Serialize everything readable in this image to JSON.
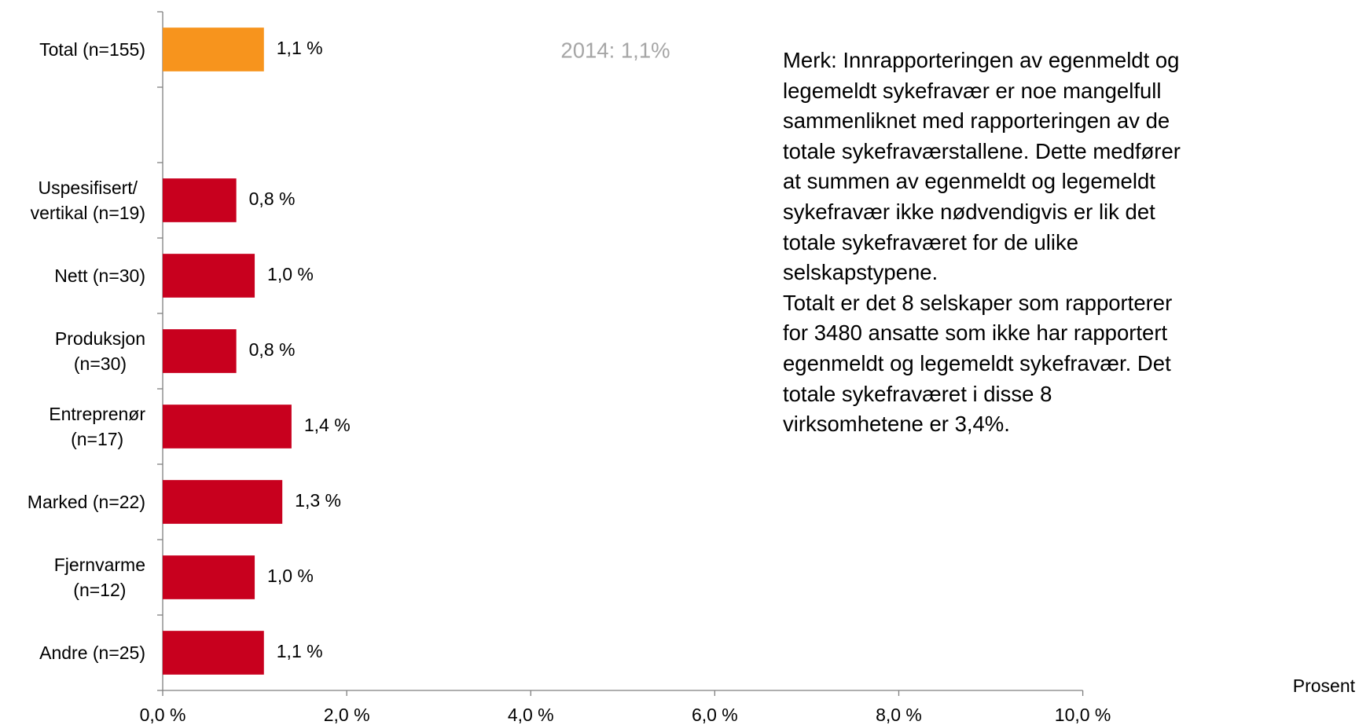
{
  "chart_data": {
    "type": "hbar",
    "categories": [
      "Total (n=155)",
      null,
      "Uspesifisert/\nvertikal (n=19)",
      "Nett (n=30)",
      "Produksjon\n(n=30)",
      "Entreprenør\n(n=17)",
      "Marked (n=22)",
      "Fjernvarme\n(n=12)",
      "Andre (n=25)"
    ],
    "values": [
      1.1,
      null,
      0.8,
      1.0,
      0.8,
      1.4,
      1.3,
      1.0,
      1.1
    ],
    "value_labels": [
      "1,1 %",
      null,
      "0,8 %",
      "1,0 %",
      "0,8 %",
      "1,4 %",
      "1,3 %",
      "1,0 %",
      "1,1 %"
    ],
    "colors": [
      "#f7941d",
      null,
      "#c8001e",
      "#c8001e",
      "#c8001e",
      "#c8001e",
      "#c8001e",
      "#c8001e",
      "#c8001e"
    ],
    "xlim": [
      0,
      10
    ],
    "xticks": [
      {
        "value": 0,
        "label": "0,0 %"
      },
      {
        "value": 2,
        "label": "2,0 %"
      },
      {
        "value": 4,
        "label": "4,0 %"
      },
      {
        "value": 6,
        "label": "6,0 %"
      },
      {
        "value": 8,
        "label": "8,0 %"
      },
      {
        "value": 10,
        "label": "10,0 %"
      }
    ],
    "xlabel": "Prosent",
    "annotations": [
      "2014: 1,1%",
      "Merk: Innrapporteringen av egenmeldt og\nlegemeldt sykefravær er noe mangelfull\nsammenliknet med rapporteringen av de\ntotale sykefraværstallene. Dette medfører\nat summen av egenmeldt og legemeldt\nsykefravær ikke nødvendigvis er lik det\ntotale sykefraværet for de ulike\nselskapstypene.\nTotalt er det 8 selskaper som rapporterer\nfor 3480 ansatte som ikke har rapportert\negenmeldt og legemeldt sykefravær. Det\ntotale sykefraværet i disse 8\nvirksomhetene er 3,4%."
    ]
  }
}
